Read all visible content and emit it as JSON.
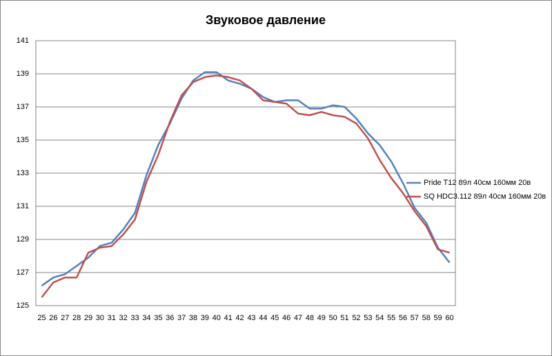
{
  "chart_data": {
    "type": "line",
    "title": "Звуковое давление",
    "categories": [
      "25",
      "26",
      "27",
      "28",
      "29",
      "30",
      "31",
      "32",
      "33",
      "34",
      "35",
      "36",
      "37",
      "38",
      "39",
      "40",
      "41",
      "42",
      "43",
      "44",
      "45",
      "46",
      "47",
      "48",
      "49",
      "50",
      "51",
      "52",
      "53",
      "54",
      "55",
      "56",
      "57",
      "58",
      "59",
      "60"
    ],
    "series": [
      {
        "name": "Pride T12  89л 40см  160мм  20в",
        "color": "#4f81bd",
        "values": [
          126.2,
          126.7,
          126.9,
          127.4,
          127.9,
          128.6,
          128.8,
          129.6,
          130.6,
          132.9,
          134.7,
          136.0,
          137.5,
          138.6,
          139.1,
          139.1,
          138.6,
          138.4,
          138.1,
          137.6,
          137.3,
          137.4,
          137.4,
          136.9,
          136.9,
          137.1,
          137.0,
          136.3,
          135.4,
          134.7,
          133.7,
          132.4,
          130.9,
          130.0,
          128.5,
          127.6
        ]
      },
      {
        "name": "SQ HDC3.112  89л 40см  160мм  20в",
        "color": "#c0504d",
        "values": [
          125.5,
          126.4,
          126.7,
          126.7,
          128.2,
          128.5,
          128.6,
          129.3,
          130.2,
          132.5,
          134.1,
          136.1,
          137.7,
          138.5,
          138.8,
          138.9,
          138.8,
          138.6,
          138.1,
          137.4,
          137.3,
          137.2,
          136.6,
          136.5,
          136.7,
          136.5,
          136.4,
          136.0,
          135.1,
          133.8,
          132.7,
          131.8,
          130.7,
          129.8,
          128.4,
          128.2
        ]
      }
    ],
    "ylim": [
      125,
      141
    ],
    "yticks": [
      125,
      127,
      129,
      131,
      133,
      135,
      137,
      139,
      141
    ],
    "grid": true,
    "legend": "right"
  }
}
